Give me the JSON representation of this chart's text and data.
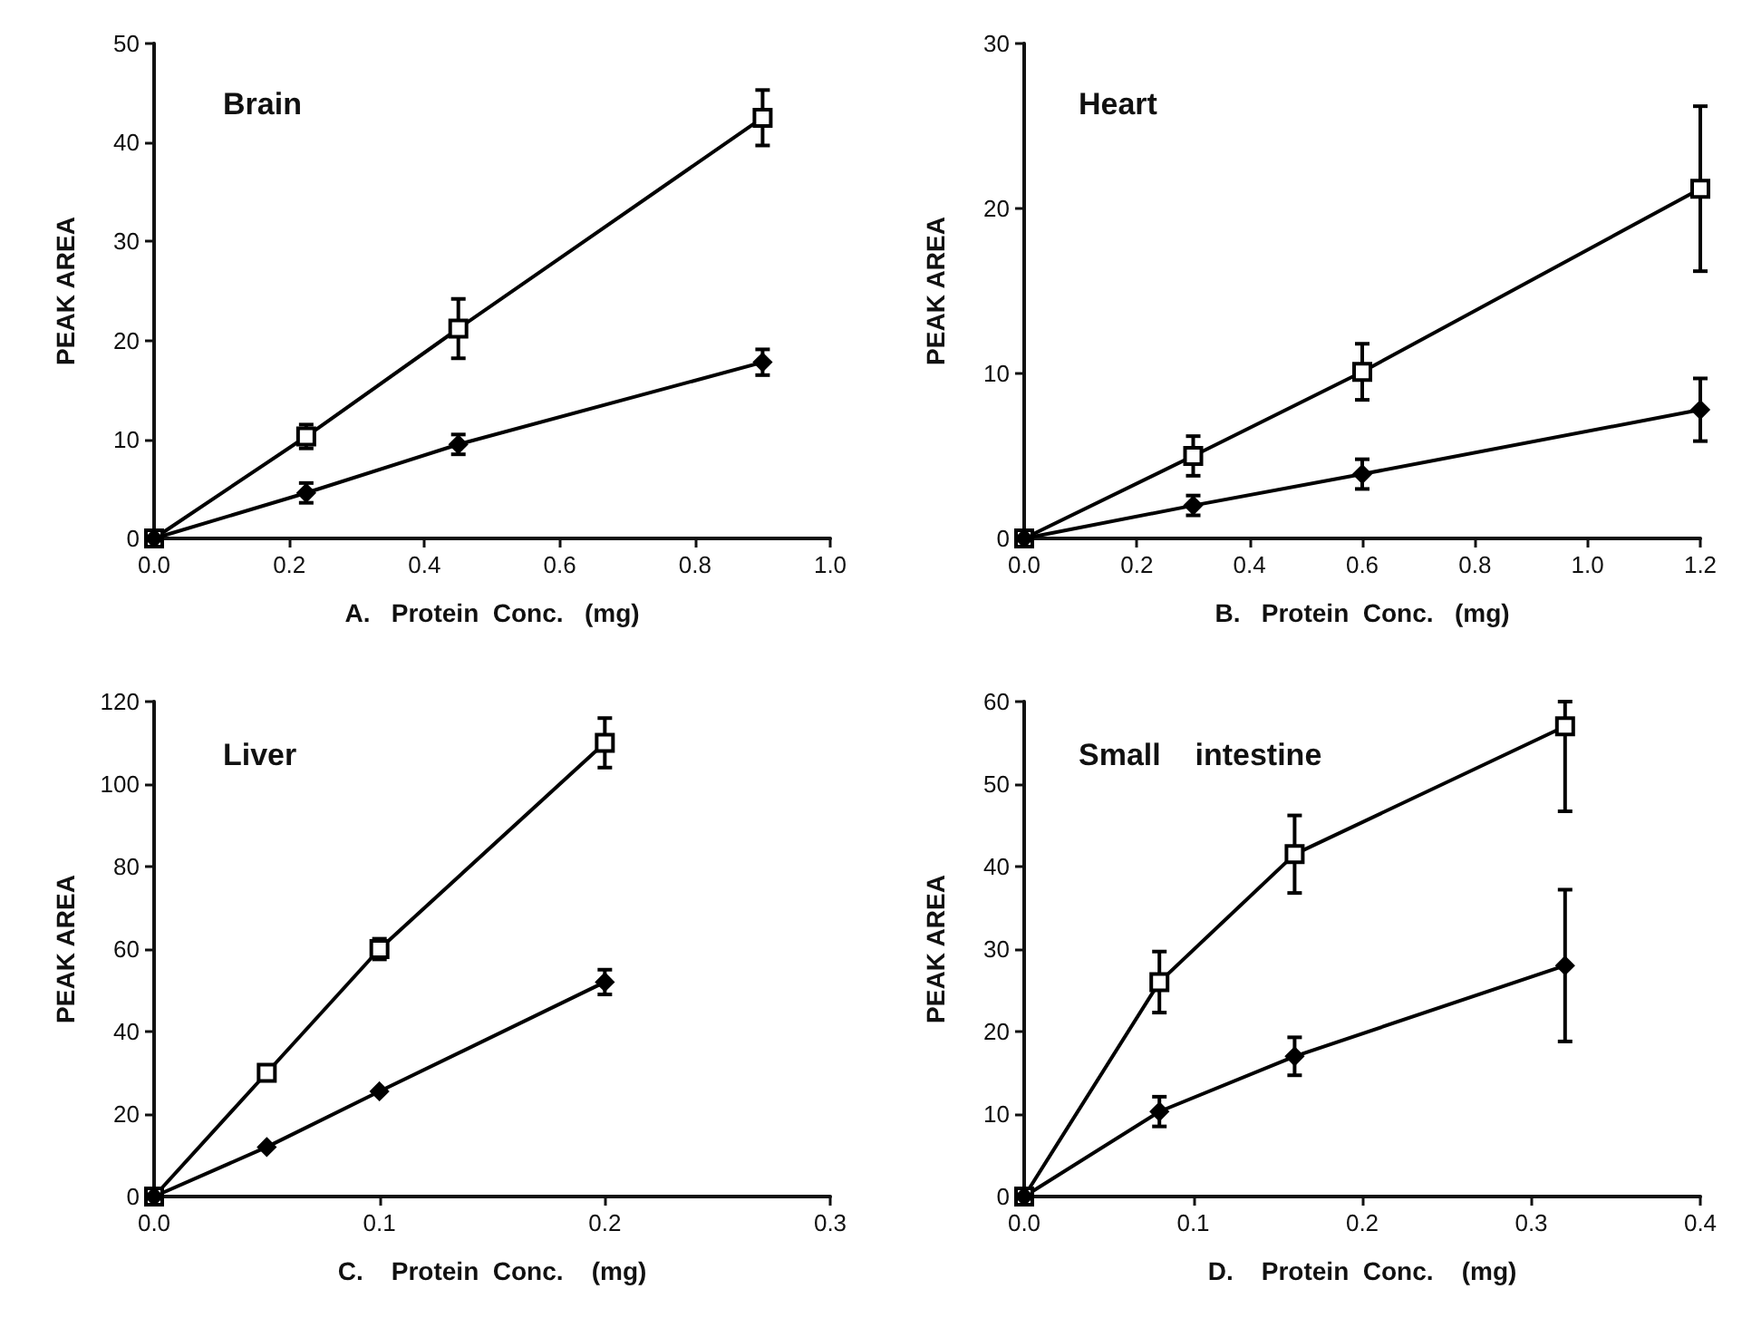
{
  "chart_data": [
    {
      "type": "line",
      "title": "Brain",
      "xlabel": "A.   Protein  Conc.   (mg)",
      "ylabel": "PEAK AREA",
      "x": [
        0,
        0.225,
        0.45,
        0.9
      ],
      "xlim": [
        0,
        1
      ],
      "xticks": [
        {
          "value": 0,
          "label": "0.0"
        },
        {
          "value": 0.2,
          "label": "0.2"
        },
        {
          "value": 0.4,
          "label": "0.4"
        },
        {
          "value": 0.6,
          "label": "0.6"
        },
        {
          "value": 0.8,
          "label": "0.8"
        },
        {
          "value": 1,
          "label": "1.0"
        }
      ],
      "ylim": [
        0,
        50
      ],
      "yticks": [
        0,
        10,
        20,
        30,
        40,
        50
      ],
      "grid": false,
      "line_style": "solid",
      "series": [
        {
          "color": "#000000",
          "marker": "square",
          "values": [
            0,
            10.3,
            21.2,
            42.5
          ],
          "errors": [
            null,
            1.2,
            3,
            2.8
          ]
        },
        {
          "color": "#000000",
          "marker": "diamond",
          "values": [
            0,
            4.6,
            9.5,
            17.8
          ],
          "errors": [
            null,
            1,
            1,
            1.3
          ]
        }
      ]
    },
    {
      "type": "line",
      "title": "Heart",
      "xlabel": "B.   Protein  Conc.   (mg)",
      "ylabel": "PEAK AREA",
      "x": [
        0,
        0.3,
        0.6,
        1.2
      ],
      "xlim": [
        0,
        1.2
      ],
      "xticks": [
        {
          "value": 0,
          "label": "0.0"
        },
        {
          "value": 0.2,
          "label": "0.2"
        },
        {
          "value": 0.4,
          "label": "0.4"
        },
        {
          "value": 0.6,
          "label": "0.6"
        },
        {
          "value": 0.8,
          "label": "0.8"
        },
        {
          "value": 1,
          "label": "1.0"
        },
        {
          "value": 1.2,
          "label": "1.2"
        }
      ],
      "ylim": [
        0,
        30
      ],
      "yticks": [
        0,
        10,
        20,
        30
      ],
      "grid": false,
      "line_style": "solid",
      "series": [
        {
          "color": "#000000",
          "marker": "square",
          "values": [
            0,
            5,
            10.1,
            21.2
          ],
          "errors": [
            null,
            1.2,
            1.7,
            5
          ]
        },
        {
          "color": "#000000",
          "marker": "diamond",
          "values": [
            0,
            2,
            3.9,
            7.8
          ],
          "errors": [
            null,
            0.6,
            0.9,
            1.9
          ]
        }
      ]
    },
    {
      "type": "line",
      "title": "Liver",
      "xlabel": "C.    Protein  Conc.    (mg)",
      "ylabel": "PEAK AREA",
      "x": [
        0,
        0.05,
        0.1,
        0.2
      ],
      "xlim": [
        0,
        0.3
      ],
      "xticks": [
        {
          "value": 0,
          "label": "0.0"
        },
        0.1,
        0.2,
        0.3
      ],
      "ylim": [
        0,
        120
      ],
      "yticks": [
        0,
        20,
        40,
        60,
        80,
        100,
        120
      ],
      "grid": false,
      "line_style": "solid",
      "series": [
        {
          "color": "#000000",
          "marker": "square",
          "values": [
            0,
            30,
            60,
            110
          ],
          "errors": [
            null,
            null,
            2.5,
            6
          ]
        },
        {
          "color": "#000000",
          "marker": "diamond",
          "values": [
            0,
            12,
            25.5,
            52
          ],
          "errors": [
            null,
            null,
            null,
            3
          ]
        }
      ]
    },
    {
      "type": "line",
      "title": "Small    intestine",
      "xlabel": "D.    Protein  Conc.    (mg)",
      "ylabel": "PEAK AREA",
      "x": [
        0,
        0.08,
        0.16,
        0.32
      ],
      "xlim": [
        0,
        0.4
      ],
      "xticks": [
        {
          "value": 0,
          "label": "0.0"
        },
        0.1,
        0.2,
        0.3,
        0.4
      ],
      "ylim": [
        0,
        60
      ],
      "yticks": [
        0,
        10,
        20,
        30,
        40,
        50,
        60
      ],
      "grid": false,
      "line_style": "solid",
      "series": [
        {
          "color": "#000000",
          "marker": "square",
          "values": [
            0,
            26,
            41.5,
            57
          ],
          "errors": [
            null,
            3.7,
            4.7,
            [
              46.7,
              60
            ]
          ]
        },
        {
          "color": "#000000",
          "marker": "diamond",
          "values": [
            0,
            10.3,
            17,
            28
          ],
          "errors": [
            null,
            1.8,
            2.3,
            9.2
          ]
        }
      ]
    }
  ]
}
